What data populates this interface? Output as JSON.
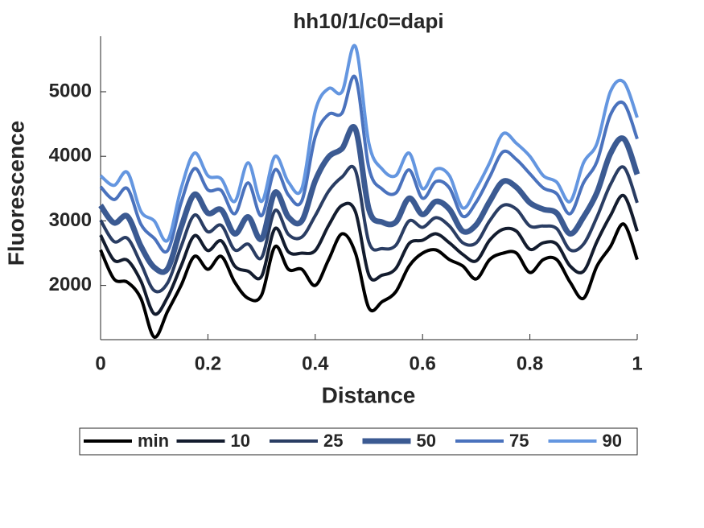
{
  "chart_data": {
    "type": "line",
    "title": "hh10/1/c0=dapi",
    "x_label": "Distance",
    "y_label": "Fluorescence",
    "x": [
      0,
      0.025,
      0.05,
      0.075,
      0.1,
      0.125,
      0.15,
      0.175,
      0.2,
      0.225,
      0.25,
      0.275,
      0.3,
      0.325,
      0.35,
      0.375,
      0.4,
      0.425,
      0.45,
      0.475,
      0.5,
      0.525,
      0.55,
      0.575,
      0.6,
      0.625,
      0.65,
      0.675,
      0.7,
      0.725,
      0.75,
      0.775,
      0.8,
      0.825,
      0.85,
      0.875,
      0.9,
      0.925,
      0.95,
      0.975,
      1
    ],
    "series": [
      {
        "name": "min",
        "color": "#000000",
        "line_width": 4,
        "values": [
          2550,
          2100,
          2050,
          1800,
          1200,
          1600,
          2000,
          2450,
          2250,
          2450,
          2050,
          1800,
          1850,
          2600,
          2250,
          2250,
          2000,
          2400,
          2800,
          2500,
          1650,
          1750,
          1900,
          2300,
          2500,
          2550,
          2400,
          2300,
          2100,
          2400,
          2500,
          2500,
          2200,
          2400,
          2400,
          2050,
          1800,
          2300,
          2600,
          2950,
          2400
        ]
      },
      {
        "name": "10",
        "color": "#131c2e",
        "line_width": 4,
        "values": [
          2780,
          2390,
          2390,
          2070,
          1560,
          1820,
          2300,
          2770,
          2540,
          2690,
          2300,
          2220,
          2140,
          2880,
          2520,
          2500,
          2540,
          2930,
          3240,
          3140,
          2160,
          2160,
          2260,
          2650,
          2700,
          2800,
          2660,
          2480,
          2380,
          2700,
          2870,
          2840,
          2560,
          2660,
          2640,
          2300,
          2220,
          2680,
          3080,
          3390,
          2840
        ]
      },
      {
        "name": "25",
        "color": "#2a3d63",
        "line_width": 4,
        "values": [
          3010,
          2680,
          2730,
          2340,
          1920,
          2040,
          2600,
          3090,
          2830,
          2930,
          2550,
          2640,
          2430,
          3160,
          2790,
          2750,
          3080,
          3460,
          3680,
          3780,
          2670,
          2570,
          2620,
          3000,
          2900,
          3050,
          2920,
          2660,
          2660,
          3000,
          3240,
          3180,
          2920,
          2920,
          2880,
          2550,
          2640,
          3060,
          3560,
          3830,
          3280
        ]
      },
      {
        "name": "50",
        "color": "#3b5a92",
        "line_width": 7,
        "values": [
          3240,
          2970,
          3070,
          2610,
          2280,
          2260,
          2900,
          3410,
          3120,
          3170,
          2800,
          3060,
          2720,
          3440,
          3060,
          3000,
          3620,
          3990,
          4120,
          4420,
          3180,
          2980,
          2980,
          3350,
          3100,
          3300,
          3180,
          2840,
          2940,
          3300,
          3610,
          3520,
          3280,
          3180,
          3120,
          2800,
          3060,
          3440,
          4040,
          4270,
          3720
        ]
      },
      {
        "name": "75",
        "color": "#4a72bd",
        "line_width": 4,
        "values": [
          3530,
          3330,
          3500,
          2950,
          2730,
          2540,
          3280,
          3810,
          3480,
          3470,
          3110,
          3590,
          3080,
          3790,
          3400,
          3310,
          4300,
          4650,
          4670,
          5220,
          3820,
          3490,
          3430,
          3790,
          3350,
          3610,
          3510,
          3070,
          3290,
          3680,
          4070,
          3950,
          3730,
          3510,
          3420,
          3110,
          3590,
          3920,
          4640,
          4820,
          4270
        ]
      },
      {
        "name": "90",
        "color": "#6496e0",
        "line_width": 4,
        "values": [
          3700,
          3550,
          3750,
          3150,
          3000,
          2700,
          3500,
          4050,
          3700,
          3650,
          3300,
          3900,
          3300,
          4000,
          3600,
          3500,
          4700,
          5050,
          5000,
          5700,
          4200,
          3800,
          3700,
          4050,
          3500,
          3800,
          3700,
          3200,
          3500,
          3900,
          4350,
          4200,
          4000,
          3700,
          3600,
          3300,
          3900,
          4200,
          5000,
          5150,
          4600
        ]
      }
    ],
    "xlim": [
      0,
      1
    ],
    "ylim": [
      1160,
      5860
    ],
    "xticks": [
      0,
      0.2,
      0.4,
      0.6,
      0.8,
      1
    ],
    "yticks": [
      2000,
      3000,
      4000,
      5000
    ],
    "legend": "bottom-outside"
  }
}
